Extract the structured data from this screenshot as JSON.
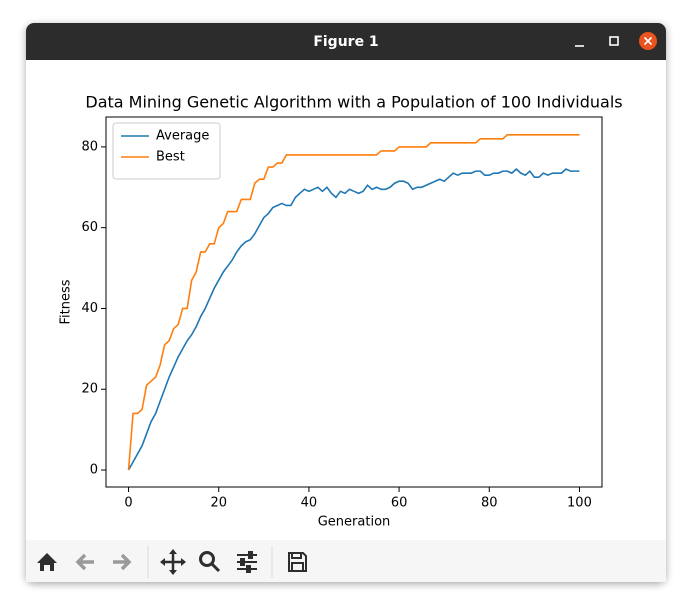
{
  "window": {
    "title": "Figure 1"
  },
  "chart_data": {
    "type": "line",
    "title": "Data Mining Genetic Algorithm with a Population of 100 Individuals",
    "x_label": "Generation",
    "y_label": "Fitness",
    "x": [
      0,
      1,
      2,
      3,
      4,
      5,
      6,
      7,
      8,
      9,
      10,
      11,
      12,
      13,
      14,
      15,
      16,
      17,
      18,
      19,
      20,
      21,
      22,
      23,
      24,
      25,
      26,
      27,
      28,
      29,
      30,
      31,
      32,
      33,
      34,
      35,
      36,
      37,
      38,
      39,
      40,
      41,
      42,
      43,
      44,
      45,
      46,
      47,
      48,
      49,
      50,
      51,
      52,
      53,
      54,
      55,
      56,
      57,
      58,
      59,
      60,
      61,
      62,
      63,
      64,
      65,
      66,
      67,
      68,
      69,
      70,
      71,
      72,
      73,
      74,
      75,
      76,
      77,
      78,
      79,
      80,
      81,
      82,
      83,
      84,
      85,
      86,
      87,
      88,
      89,
      90,
      91,
      92,
      93,
      94,
      95,
      96,
      97,
      98,
      99,
      100
    ],
    "series": [
      {
        "name": "Average",
        "color": "#1f77b4",
        "values": [
          0,
          2,
          4,
          6,
          9,
          12,
          14,
          17,
          20,
          23,
          25.5,
          28,
          30,
          32,
          33.5,
          35.5,
          38,
          40,
          42.5,
          45,
          47,
          49,
          50.5,
          52,
          54,
          55.5,
          56.5,
          57,
          58.5,
          60.5,
          62.5,
          63.5,
          65,
          65.5,
          66,
          65.5,
          65.5,
          67.5,
          68.5,
          69.5,
          69,
          69.5,
          70,
          69,
          70,
          68.5,
          67.5,
          69,
          68.5,
          69.5,
          69,
          68.5,
          69,
          70.5,
          69.5,
          70,
          69.5,
          69.5,
          70,
          71,
          71.5,
          71.5,
          71,
          69.5,
          70,
          70,
          70.5,
          71,
          71.5,
          72,
          71.5,
          72.5,
          73.5,
          73,
          73.5,
          73.5,
          73.5,
          74,
          74,
          73,
          73,
          73.5,
          73.5,
          74,
          74,
          73.5,
          74.5,
          73.5,
          73,
          74,
          72.5,
          72.5,
          73.5,
          73,
          73.5,
          73.5,
          73.5,
          74.5,
          74,
          74,
          74
        ]
      },
      {
        "name": "Best",
        "color": "#ff7f0e",
        "values": [
          0,
          14,
          14,
          15,
          21,
          22,
          23,
          26,
          31,
          32,
          35,
          36,
          40,
          40,
          47,
          49,
          54,
          54,
          56,
          56,
          60,
          61,
          64,
          64,
          64,
          67,
          67,
          67,
          71,
          72,
          72,
          75,
          75,
          76,
          76,
          78,
          78,
          78,
          78,
          78,
          78,
          78,
          78,
          78,
          78,
          78,
          78,
          78,
          78,
          78,
          78,
          78,
          78,
          78,
          78,
          78,
          79,
          79,
          79,
          79,
          80,
          80,
          80,
          80,
          80,
          80,
          80,
          81,
          81,
          81,
          81,
          81,
          81,
          81,
          81,
          81,
          81,
          81,
          82,
          82,
          82,
          82,
          82,
          82,
          83,
          83,
          83,
          83,
          83,
          83,
          83,
          83,
          83,
          83,
          83,
          83,
          83,
          83,
          83,
          83,
          83
        ]
      }
    ],
    "xlim": [
      -5,
      105
    ],
    "ylim": [
      -4.2,
      87.4
    ],
    "xticks": [
      0,
      20,
      40,
      60,
      80,
      100
    ],
    "yticks": [
      0,
      20,
      40,
      60,
      80
    ],
    "legend": "upper left",
    "grid": false
  }
}
